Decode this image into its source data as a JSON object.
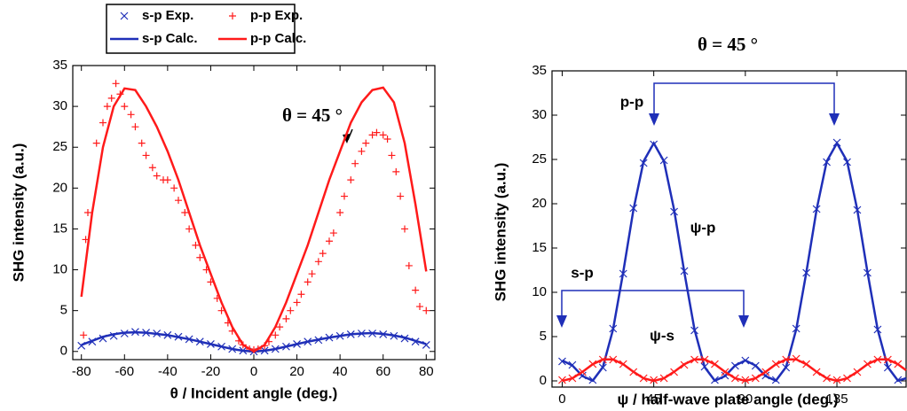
{
  "chart_data": [
    {
      "type": "scatter",
      "xlabel": "θ /  Incident angle (deg.)",
      "ylabel": "SHG intensity (a.u.)",
      "xlim": [
        -84,
        84
      ],
      "ylim": [
        -1,
        35
      ],
      "xticks": [
        -80,
        -60,
        -40,
        -20,
        0,
        20,
        40,
        60,
        80
      ],
      "yticks": [
        0,
        5,
        10,
        15,
        20,
        25,
        30,
        35
      ],
      "legend": "top-left",
      "annotations": [
        "θ = 45 °"
      ],
      "series": [
        {
          "name": "s-p Exp.",
          "color": "#1f2fb8",
          "marker": "x",
          "x": [
            -80,
            -75,
            -70,
            -65,
            -60,
            -55,
            -50,
            -45,
            -40,
            -35,
            -30,
            -25,
            -20,
            -15,
            -10,
            -5,
            0,
            5,
            10,
            15,
            20,
            25,
            30,
            35,
            40,
            45,
            50,
            55,
            60,
            65,
            70,
            75,
            80
          ],
          "values": [
            0.7,
            1.2,
            1.6,
            1.9,
            2.2,
            2.4,
            2.3,
            2.2,
            2.0,
            1.8,
            1.5,
            1.2,
            0.9,
            0.6,
            0.3,
            0.1,
            0.0,
            0.1,
            0.3,
            0.6,
            0.9,
            1.2,
            1.4,
            1.7,
            1.9,
            2.1,
            2.2,
            2.2,
            2.1,
            1.9,
            1.6,
            1.2,
            0.8
          ]
        },
        {
          "name": "p-p Exp.",
          "color": "#ff1a1a",
          "marker": "plus",
          "x": [
            -79,
            -78,
            -77,
            -73,
            -70,
            -68,
            -66,
            -64,
            -62,
            -60,
            -57,
            -55,
            -52,
            -50,
            -47,
            -45,
            -42,
            -40,
            -37,
            -35,
            -32,
            -30,
            -27,
            -25,
            -22,
            -20,
            -17,
            -15,
            -12,
            -10,
            -7,
            -5,
            -2,
            0,
            2,
            5,
            7,
            10,
            12,
            15,
            17,
            20,
            22,
            25,
            27,
            30,
            32,
            35,
            37,
            40,
            42,
            45,
            47,
            50,
            52,
            55,
            57,
            60,
            62,
            64,
            66,
            68,
            70,
            72,
            75,
            77,
            80
          ],
          "values": [
            2,
            13.7,
            17,
            25.5,
            28,
            30,
            31,
            32.8,
            31.5,
            30,
            29,
            27.5,
            25.5,
            24,
            22.5,
            21.5,
            21,
            21,
            20,
            18.5,
            17,
            15,
            13,
            11.5,
            10,
            8.5,
            6.5,
            5,
            3.5,
            2.5,
            1.3,
            0.8,
            0.3,
            0.2,
            0.3,
            0.7,
            1.2,
            2,
            3,
            4,
            5,
            6,
            7,
            8.5,
            9.5,
            11,
            12,
            13.5,
            14.5,
            17,
            19,
            21,
            23,
            24.5,
            25.5,
            26.5,
            26.8,
            26.5,
            26,
            24,
            22,
            19,
            15,
            10.5,
            7.5,
            5.5,
            5
          ]
        },
        {
          "name": "s-p Calc.",
          "color": "#1f2fb8",
          "marker": "line",
          "x": [
            -80,
            -75,
            -70,
            -65,
            -60,
            -55,
            -50,
            -45,
            -40,
            -35,
            -30,
            -25,
            -20,
            -15,
            -10,
            -5,
            0,
            5,
            10,
            15,
            20,
            25,
            30,
            35,
            40,
            45,
            50,
            55,
            60,
            65,
            70,
            75,
            80
          ],
          "values": [
            0.8,
            1.3,
            1.8,
            2.1,
            2.3,
            2.35,
            2.3,
            2.15,
            2.0,
            1.75,
            1.5,
            1.2,
            0.9,
            0.6,
            0.3,
            0.08,
            0,
            0.08,
            0.3,
            0.6,
            0.9,
            1.2,
            1.45,
            1.7,
            1.9,
            2.1,
            2.2,
            2.25,
            2.15,
            1.95,
            1.7,
            1.3,
            0.9
          ]
        },
        {
          "name": "p-p Calc.",
          "color": "#ff1a1a",
          "marker": "line",
          "x": [
            -80,
            -75,
            -70,
            -65,
            -60,
            -55,
            -50,
            -45,
            -40,
            -35,
            -30,
            -25,
            -20,
            -15,
            -10,
            -5,
            0,
            5,
            10,
            15,
            20,
            25,
            30,
            35,
            40,
            45,
            50,
            55,
            60,
            65,
            70,
            75,
            80
          ],
          "values": [
            6.7,
            17,
            25,
            30,
            32.2,
            32,
            30,
            27.5,
            24.5,
            21,
            17,
            13,
            9.5,
            6,
            3,
            0.8,
            0,
            0.8,
            3,
            6,
            9.5,
            13,
            17,
            21,
            24.5,
            28,
            30.5,
            32,
            32.3,
            30.5,
            25.5,
            18,
            9.8
          ]
        }
      ]
    },
    {
      "type": "scatter",
      "title": "θ = 45 °",
      "xlabel": "ψ / half-wave plate angle (deg.)",
      "ylabel": "SHG intensity (a.u.)",
      "xlim": [
        -5,
        169
      ],
      "ylim": [
        -0.7,
        35
      ],
      "xticks": [
        0,
        45,
        90,
        135
      ],
      "yticks": [
        0,
        5,
        10,
        15,
        20,
        25,
        30,
        35
      ],
      "annotations": [
        "p-p",
        "s-p",
        "ψ-p",
        "ψ-s"
      ],
      "series": [
        {
          "color": "#1f2fb8",
          "marker": "x",
          "x": [
            0,
            5,
            10,
            15,
            20,
            25,
            30,
            35,
            40,
            45,
            50,
            55,
            60,
            65,
            70,
            75,
            80,
            85,
            90,
            95,
            100,
            105,
            110,
            115,
            120,
            125,
            130,
            135,
            140,
            145,
            150,
            155,
            160,
            165
          ],
          "values": [
            2.2,
            1.8,
            0.6,
            0.1,
            1.5,
            5.9,
            12.1,
            19.5,
            24.6,
            26.7,
            24.9,
            19.1,
            12.4,
            5.7,
            1.6,
            0.1,
            0.6,
            1.7,
            2.3,
            1.7,
            0.6,
            0.1,
            1.5,
            5.9,
            12.2,
            19.4,
            24.7,
            26.9,
            24.7,
            19.3,
            12.2,
            5.8,
            1.5,
            0.1
          ]
        },
        {
          "color": "#1f2fb8",
          "marker": "line",
          "x": [
            0,
            5,
            10,
            15,
            20,
            25,
            30,
            35,
            40,
            45,
            50,
            55,
            60,
            65,
            70,
            75,
            80,
            85,
            90,
            95,
            100,
            105,
            110,
            115,
            120,
            125,
            130,
            135,
            140,
            145,
            150,
            155,
            160,
            165,
            169
          ],
          "values": [
            2.31,
            1.74,
            0.54,
            0.02,
            1.56,
            5.82,
            12.29,
            19.32,
            24.79,
            26.83,
            24.79,
            19.32,
            12.29,
            5.82,
            1.56,
            0.02,
            0.54,
            1.74,
            2.31,
            1.74,
            0.54,
            0.02,
            1.56,
            5.82,
            12.29,
            19.32,
            24.79,
            26.83,
            24.79,
            19.32,
            12.29,
            5.82,
            1.56,
            0.02,
            0.3
          ]
        },
        {
          "color": "#ff1a1a",
          "marker": "x",
          "x": [
            0,
            5,
            10,
            15,
            20,
            25,
            30,
            35,
            40,
            45,
            50,
            55,
            60,
            65,
            70,
            75,
            80,
            85,
            90,
            95,
            100,
            105,
            110,
            115,
            120,
            125,
            130,
            135,
            140,
            145,
            150,
            155,
            160,
            165
          ],
          "values": [
            0.1,
            0.3,
            1.0,
            1.9,
            2.4,
            2.4,
            1.9,
            1.0,
            0.3,
            0.1,
            0.3,
            1.0,
            1.8,
            2.4,
            2.4,
            1.9,
            1.0,
            0.3,
            0.1,
            0.3,
            1.0,
            1.9,
            2.4,
            2.5,
            1.9,
            1.0,
            0.3,
            0.1,
            0.3,
            1.0,
            1.9,
            2.4,
            2.4,
            1.9
          ]
        },
        {
          "color": "#ff1a1a",
          "marker": "line",
          "x": [
            0,
            5,
            10,
            15,
            20,
            25,
            30,
            35,
            40,
            45,
            50,
            55,
            60,
            65,
            70,
            75,
            80,
            85,
            90,
            95,
            100,
            105,
            110,
            115,
            120,
            125,
            130,
            135,
            140,
            145,
            150,
            155,
            160,
            165,
            169
          ],
          "values": [
            0,
            0.29,
            1.03,
            1.88,
            2.42,
            2.42,
            1.88,
            1.03,
            0.29,
            0,
            0.29,
            1.03,
            1.88,
            2.42,
            2.42,
            1.88,
            1.03,
            0.29,
            0,
            0.29,
            1.03,
            1.88,
            2.42,
            2.42,
            1.88,
            1.03,
            0.29,
            0,
            0.29,
            1.03,
            1.88,
            2.42,
            2.42,
            1.88,
            1.2
          ]
        }
      ]
    }
  ]
}
